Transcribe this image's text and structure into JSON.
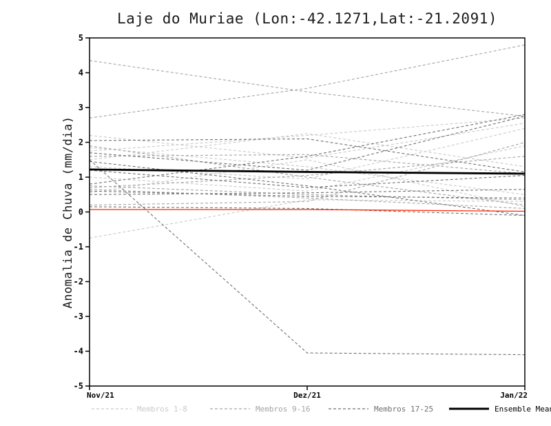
{
  "chart_data": {
    "type": "line",
    "title": "Laje do Muriae (Lon:-42.1271,Lat:-21.2091)",
    "ylabel": "Anomalia de Chuva (mm/dia)",
    "xlabel": "",
    "x_categories": [
      "Nov/21",
      "Dez/21",
      "Jan/22"
    ],
    "ylim": [
      -5,
      5
    ],
    "y_ticks": [
      -5,
      -4,
      -3,
      -2,
      -1,
      0,
      1,
      2,
      3,
      4,
      5
    ],
    "grid": false,
    "legend_position": "bottom",
    "frame_color": "#000000",
    "groups": [
      {
        "name": "Membros 1-8",
        "color": "#c9c9c9",
        "style": "dashed"
      },
      {
        "name": "Membros 9-16",
        "color": "#a3a3a3",
        "style": "dashed"
      },
      {
        "name": "Membros 17-25",
        "color": "#6f6f6f",
        "style": "dashed"
      },
      {
        "name": "Ensemble Mean",
        "color": "#000000",
        "style": "solid-thick"
      }
    ],
    "members": [
      {
        "group": 0,
        "values": [
          1.75,
          2.2,
          2.7
        ]
      },
      {
        "group": 0,
        "values": [
          2.2,
          1.55,
          2.55
        ]
      },
      {
        "group": 0,
        "values": [
          1.5,
          2.25,
          1.3
        ]
      },
      {
        "group": 0,
        "values": [
          -0.75,
          0.35,
          0.3
        ]
      },
      {
        "group": 0,
        "values": [
          1.0,
          0.6,
          1.9
        ]
      },
      {
        "group": 0,
        "values": [
          0.55,
          1.5,
          0.15
        ]
      },
      {
        "group": 0,
        "values": [
          1.3,
          0.95,
          2.4
        ]
      },
      {
        "group": 0,
        "values": [
          1.85,
          1.3,
          0.5
        ]
      },
      {
        "group": 1,
        "values": [
          4.35,
          3.45,
          2.75
        ]
      },
      {
        "group": 1,
        "values": [
          2.7,
          3.55,
          4.8
        ]
      },
      {
        "group": 1,
        "values": [
          1.9,
          1.0,
          0.2
        ]
      },
      {
        "group": 1,
        "values": [
          0.75,
          0.5,
          0.35
        ]
      },
      {
        "group": 1,
        "values": [
          0.7,
          1.05,
          1.6
        ]
      },
      {
        "group": 1,
        "values": [
          0.65,
          0.4,
          0.1
        ]
      },
      {
        "group": 1,
        "values": [
          1.6,
          1.65,
          1.1
        ]
      },
      {
        "group": 1,
        "values": [
          0.2,
          0.3,
          2.0
        ]
      },
      {
        "group": 2,
        "values": [
          2.05,
          2.1,
          1.15
        ]
      },
      {
        "group": 2,
        "values": [
          1.45,
          0.75,
          -0.1
        ]
      },
      {
        "group": 2,
        "values": [
          0.8,
          1.6,
          2.8
        ]
      },
      {
        "group": 2,
        "values": [
          0.6,
          0.45,
          0.4
        ]
      },
      {
        "group": 2,
        "values": [
          1.2,
          0.7,
          1.05
        ]
      },
      {
        "group": 2,
        "values": [
          1.5,
          -4.05,
          -4.1
        ]
      },
      {
        "group": 2,
        "values": [
          0.5,
          0.55,
          0.65
        ]
      },
      {
        "group": 2,
        "values": [
          1.7,
          1.2,
          2.75
        ]
      },
      {
        "group": 2,
        "values": [
          0.15,
          0.1,
          -0.1
        ]
      }
    ],
    "ensemble_mean": [
      1.22,
      1.15,
      1.1
    ],
    "reference_line": {
      "color": "#ff2400",
      "values": [
        0.07,
        0.07,
        0.02
      ]
    }
  }
}
